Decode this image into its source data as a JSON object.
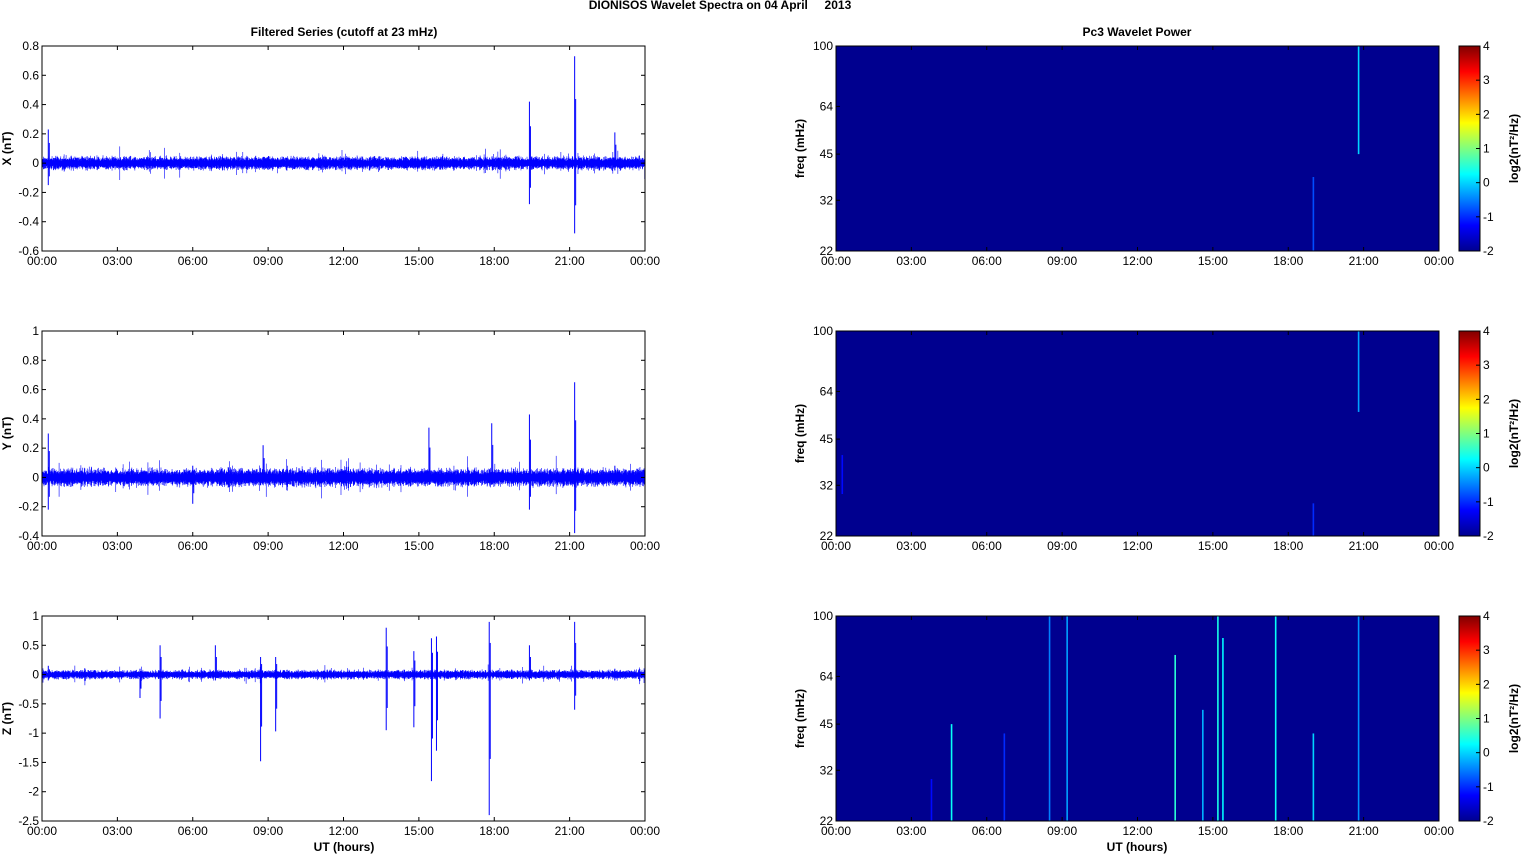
{
  "main_title": "DIONISOS Wavelet Spectra on 04 April     2013",
  "left_title": "Filtered Series (cutoff at 23 mHz)",
  "right_title": "Pc3 Wavelet Power",
  "x_label": "UT (hours)",
  "colors": {
    "trace": "#0000ff",
    "background": "#00008f"
  },
  "chart_data": [
    {
      "type": "line",
      "ylabel": "X (nT)",
      "x_ticks": [
        "00:00",
        "03:00",
        "06:00",
        "09:00",
        "12:00",
        "15:00",
        "18:00",
        "21:00",
        "00:00"
      ],
      "x_range_hours": [
        0,
        24
      ],
      "ylim": [
        -0.6,
        0.8
      ],
      "y_ticks": [
        "0.8",
        "0.6",
        "0.4",
        "0.2",
        "0",
        "-0.2",
        "-0.4",
        "-0.6"
      ],
      "y_tick_values": [
        0.8,
        0.6,
        0.4,
        0.2,
        0,
        -0.2,
        -0.4,
        -0.6
      ],
      "noise_level": 0.03,
      "spikes": [
        {
          "t": 0.25,
          "max": 0.23,
          "min": -0.15
        },
        {
          "t": 19.4,
          "max": 0.42,
          "min": -0.28
        },
        {
          "t": 21.2,
          "max": 0.73,
          "min": -0.48
        },
        {
          "t": 22.8,
          "max": 0.21,
          "min": -0.05
        }
      ]
    },
    {
      "type": "line",
      "ylabel": "Y (nT)",
      "x_ticks": [
        "00:00",
        "03:00",
        "06:00",
        "09:00",
        "12:00",
        "15:00",
        "18:00",
        "21:00",
        "00:00"
      ],
      "x_range_hours": [
        0,
        24
      ],
      "ylim": [
        -0.4,
        1
      ],
      "y_ticks": [
        "1",
        "0.8",
        "0.6",
        "0.4",
        "0.2",
        "0",
        "-0.2",
        "-0.4"
      ],
      "y_tick_values": [
        1,
        0.8,
        0.6,
        0.4,
        0.2,
        0,
        -0.2,
        -0.4
      ],
      "noise_level": 0.04,
      "spikes": [
        {
          "t": 0.25,
          "max": 0.3,
          "min": -0.22
        },
        {
          "t": 6.0,
          "max": 0.08,
          "min": -0.18
        },
        {
          "t": 8.8,
          "max": 0.22,
          "min": -0.05
        },
        {
          "t": 15.4,
          "max": 0.34,
          "min": -0.05
        },
        {
          "t": 17.9,
          "max": 0.37,
          "min": -0.05
        },
        {
          "t": 19.4,
          "max": 0.43,
          "min": -0.22
        },
        {
          "t": 21.2,
          "max": 0.65,
          "min": -0.38
        },
        {
          "t": 22.8,
          "max": 0.08,
          "min": -0.05
        }
      ]
    },
    {
      "type": "line",
      "ylabel": "Z (nT)",
      "x_ticks": [
        "00:00",
        "03:00",
        "06:00",
        "09:00",
        "12:00",
        "15:00",
        "18:00",
        "21:00",
        "00:00"
      ],
      "x_range_hours": [
        0,
        24
      ],
      "ylim": [
        -2.5,
        1
      ],
      "y_ticks": [
        "1",
        "0.5",
        "0",
        "-0.5",
        "-1",
        "-1.5",
        "-2",
        "-2.5"
      ],
      "y_tick_values": [
        1,
        0.5,
        0,
        -0.5,
        -1,
        -1.5,
        -2,
        -2.5
      ],
      "noise_level": 0.05,
      "spikes": [
        {
          "t": 0.25,
          "max": 0.15,
          "min": -0.1
        },
        {
          "t": 3.9,
          "max": 0.1,
          "min": -0.4
        },
        {
          "t": 4.7,
          "max": 0.5,
          "min": -0.75
        },
        {
          "t": 6.9,
          "max": 0.5,
          "min": -0.1
        },
        {
          "t": 8.7,
          "max": 0.3,
          "min": -1.48
        },
        {
          "t": 9.3,
          "max": 0.3,
          "min": -0.97
        },
        {
          "t": 13.7,
          "max": 0.8,
          "min": -0.95
        },
        {
          "t": 14.8,
          "max": 0.4,
          "min": -0.9
        },
        {
          "t": 15.5,
          "max": 0.62,
          "min": -1.82
        },
        {
          "t": 15.7,
          "max": 0.65,
          "min": -1.3
        },
        {
          "t": 17.8,
          "max": 0.9,
          "min": -2.4
        },
        {
          "t": 19.4,
          "max": 0.5,
          "min": -0.1
        },
        {
          "t": 21.2,
          "max": 0.9,
          "min": -0.6
        },
        {
          "t": 22.8,
          "max": 0.1,
          "min": -0.1
        }
      ]
    },
    {
      "type": "heatmap",
      "ylabel": "freq (mHz)",
      "x_ticks": [
        "00:00",
        "03:00",
        "06:00",
        "09:00",
        "12:00",
        "15:00",
        "18:00",
        "21:00",
        "00:00"
      ],
      "y_ticks": [
        "100",
        "64",
        "45",
        "32",
        "22"
      ],
      "y_tick_values": [
        100,
        64,
        45,
        32,
        22
      ],
      "ylim": [
        22,
        100
      ],
      "y_scale": "log",
      "colorbar_label": "log2(nT²/Hz)",
      "colorbar_ticks": [
        "4",
        "3",
        "2",
        "1",
        "0",
        "-1",
        "-2"
      ],
      "colorbar_values": [
        4,
        3,
        2,
        1,
        0,
        -1,
        -2
      ],
      "clim": [
        -2,
        4
      ],
      "background_value": -2,
      "streaks": [
        {
          "t": 19.0,
          "f_low": 22,
          "f_high": 38,
          "value": -0.8
        },
        {
          "t": 20.8,
          "f_low": 45,
          "f_high": 100,
          "value": 0.0
        }
      ]
    },
    {
      "type": "heatmap",
      "ylabel": "freq (mHz)",
      "x_ticks": [
        "00:00",
        "03:00",
        "06:00",
        "09:00",
        "12:00",
        "15:00",
        "18:00",
        "21:00",
        "00:00"
      ],
      "y_ticks": [
        "100",
        "64",
        "45",
        "32",
        "22"
      ],
      "y_tick_values": [
        100,
        64,
        45,
        32,
        22
      ],
      "ylim": [
        22,
        100
      ],
      "y_scale": "log",
      "colorbar_label": "log2(nT²/Hz)",
      "colorbar_ticks": [
        "4",
        "3",
        "2",
        "1",
        "0",
        "-1",
        "-2"
      ],
      "colorbar_values": [
        4,
        3,
        2,
        1,
        0,
        -1,
        -2
      ],
      "clim": [
        -2,
        4
      ],
      "background_value": -2,
      "streaks": [
        {
          "t": 0.25,
          "f_low": 30,
          "f_high": 40,
          "value": -1.2
        },
        {
          "t": 19.0,
          "f_low": 22,
          "f_high": 28,
          "value": -1.0
        },
        {
          "t": 20.8,
          "f_low": 55,
          "f_high": 100,
          "value": -0.3
        }
      ]
    },
    {
      "type": "heatmap",
      "ylabel": "freq (mHz)",
      "x_ticks": [
        "00:00",
        "03:00",
        "06:00",
        "09:00",
        "12:00",
        "15:00",
        "18:00",
        "21:00",
        "00:00"
      ],
      "y_ticks": [
        "100",
        "64",
        "45",
        "32",
        "22"
      ],
      "y_tick_values": [
        100,
        64,
        45,
        32,
        22
      ],
      "ylim": [
        22,
        100
      ],
      "y_scale": "log",
      "colorbar_label": "log2(nT²/Hz)",
      "colorbar_ticks": [
        "4",
        "3",
        "2",
        "1",
        "0",
        "-1",
        "-2"
      ],
      "colorbar_values": [
        4,
        3,
        2,
        1,
        0,
        -1,
        -2
      ],
      "clim": [
        -2,
        4
      ],
      "background_value": -2,
      "streaks": [
        {
          "t": 3.8,
          "f_low": 22,
          "f_high": 30,
          "value": -1.2
        },
        {
          "t": 4.6,
          "f_low": 22,
          "f_high": 45,
          "value": 0.3
        },
        {
          "t": 6.7,
          "f_low": 22,
          "f_high": 42,
          "value": -1.0
        },
        {
          "t": 8.5,
          "f_low": 22,
          "f_high": 100,
          "value": -0.5
        },
        {
          "t": 9.2,
          "f_low": 22,
          "f_high": 100,
          "value": -0.3
        },
        {
          "t": 13.5,
          "f_low": 22,
          "f_high": 75,
          "value": 0.5
        },
        {
          "t": 14.6,
          "f_low": 22,
          "f_high": 50,
          "value": -0.2
        },
        {
          "t": 15.2,
          "f_low": 22,
          "f_high": 100,
          "value": 0.4
        },
        {
          "t": 15.4,
          "f_low": 22,
          "f_high": 85,
          "value": 0.2
        },
        {
          "t": 17.5,
          "f_low": 22,
          "f_high": 100,
          "value": 0.3
        },
        {
          "t": 19.0,
          "f_low": 22,
          "f_high": 42,
          "value": 0.0
        },
        {
          "t": 20.8,
          "f_low": 22,
          "f_high": 100,
          "value": -0.4
        }
      ]
    }
  ]
}
